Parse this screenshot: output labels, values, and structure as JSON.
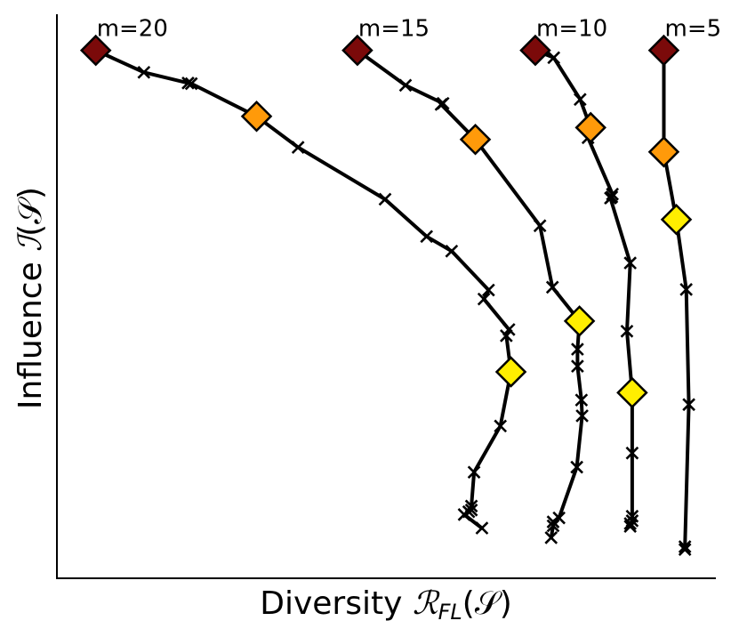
{
  "chart_data": {
    "type": "line",
    "xlabel": "Diversity ℛFL(𝒮)",
    "ylabel": "Influence ℐ(𝒮)",
    "x_label_parts": {
      "prefix": "Diversity ",
      "symbol": "ℛ",
      "subscript": "FL",
      "argument": "(𝒮)"
    },
    "y_label_parts": {
      "prefix": "Influence ",
      "symbol": "ℐ",
      "argument": "(𝒮)"
    },
    "xlim": [
      0,
      100
    ],
    "ylim": [
      0,
      100
    ],
    "grid": false,
    "ticks_shown": false,
    "marker_colors": {
      "dark_red": "#7b0a0a",
      "orange": "#ff9a0a",
      "yellow": "#ffee00"
    },
    "series": [
      {
        "name": "m=20",
        "points": [
          [
            5.9,
            93.6
          ],
          [
            13.2,
            89.7
          ],
          [
            19.9,
            87.8
          ],
          [
            20.4,
            87.7
          ],
          [
            30.3,
            81.9
          ],
          [
            36.6,
            76.4
          ],
          [
            49.8,
            67.2
          ],
          [
            56.1,
            60.6
          ],
          [
            59.9,
            58.0
          ],
          [
            65.5,
            51.1
          ],
          [
            64.8,
            49.5
          ],
          [
            68.6,
            44.1
          ],
          [
            68.2,
            43.0
          ],
          [
            68.9,
            36.6
          ],
          [
            67.3,
            27.0
          ],
          [
            63.3,
            18.8
          ],
          [
            62.9,
            12.8
          ],
          [
            62.9,
            12.1
          ],
          [
            62.5,
            11.8
          ],
          [
            61.8,
            11.3
          ],
          [
            64.5,
            8.9
          ]
        ],
        "highlights": [
          [
            5.9,
            93.6,
            "#7b0a0a"
          ],
          [
            30.3,
            81.9,
            "#ff9a0a"
          ],
          [
            68.9,
            36.6,
            "#ffee00"
          ]
        ]
      },
      {
        "name": "m=15",
        "points": [
          [
            45.6,
            93.6
          ],
          [
            52.9,
            87.4
          ],
          [
            58.6,
            84.2
          ],
          [
            58.3,
            84.0
          ],
          [
            63.5,
            77.8
          ],
          [
            73.3,
            62.5
          ],
          [
            75.2,
            51.6
          ],
          [
            79.3,
            45.6
          ],
          [
            79.0,
            40.6
          ],
          [
            79.0,
            37.6
          ],
          [
            79.6,
            31.6
          ],
          [
            79.7,
            28.8
          ],
          [
            78.9,
            19.7
          ],
          [
            76.2,
            10.7
          ],
          [
            75.3,
            10.0
          ],
          [
            75.3,
            9.3
          ],
          [
            75.0,
            7.2
          ]
        ],
        "highlights": [
          [
            45.6,
            93.6,
            "#7b0a0a"
          ],
          [
            63.5,
            77.8,
            "#ff9a0a"
          ],
          [
            79.3,
            45.6,
            "#ffee00"
          ]
        ]
      },
      {
        "name": "m=10",
        "points": [
          [
            72.6,
            93.6
          ],
          [
            75.4,
            92.3
          ],
          [
            79.4,
            84.9
          ],
          [
            81.0,
            79.9
          ],
          [
            80.6,
            78.1
          ],
          [
            84.3,
            68.1
          ],
          [
            84.2,
            67.6
          ],
          [
            84.0,
            67.4
          ],
          [
            87.0,
            55.9
          ],
          [
            86.5,
            43.8
          ],
          [
            87.3,
            32.9
          ],
          [
            87.3,
            22.2
          ],
          [
            87.3,
            11.0
          ],
          [
            87.3,
            10.2
          ],
          [
            87.0,
            9.7
          ],
          [
            87.0,
            9.2
          ]
        ],
        "highlights": [
          [
            72.6,
            93.6,
            "#7b0a0a"
          ],
          [
            81.0,
            79.9,
            "#ff9a0a"
          ],
          [
            87.3,
            32.9,
            "#ffee00"
          ]
        ]
      },
      {
        "name": "m=5",
        "points": [
          [
            92.1,
            93.6
          ],
          [
            92.1,
            75.6
          ],
          [
            94.0,
            63.6
          ],
          [
            95.5,
            51.2
          ],
          [
            95.9,
            30.8
          ],
          [
            95.3,
            5.6
          ],
          [
            95.3,
            5.1
          ]
        ],
        "highlights": [
          [
            92.1,
            93.6,
            "#7b0a0a"
          ],
          [
            92.1,
            75.6,
            "#ff9a0a"
          ],
          [
            94.0,
            63.6,
            "#ffee00"
          ]
        ]
      }
    ]
  }
}
